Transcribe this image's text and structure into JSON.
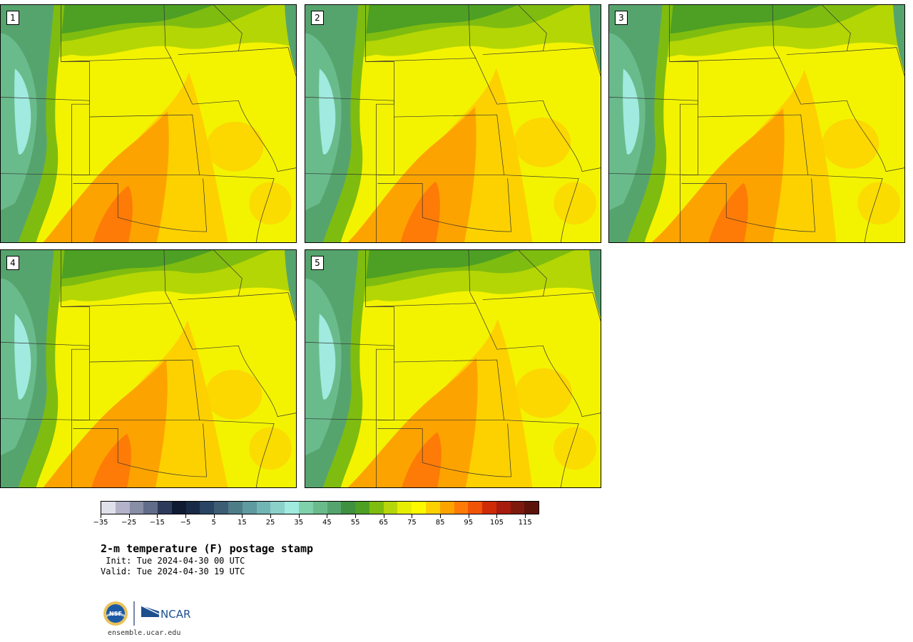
{
  "panels": [
    {
      "label": "1"
    },
    {
      "label": "2"
    },
    {
      "label": "3"
    },
    {
      "label": "4"
    },
    {
      "label": "5"
    }
  ],
  "colorbar": {
    "colors": [
      "#dfe0ea",
      "#b2b2c8",
      "#878ea6",
      "#616c88",
      "#2d3a5a",
      "#0f1a33",
      "#182a45",
      "#2a4563",
      "#3c5d74",
      "#4e7d88",
      "#5f9aa0",
      "#72b5b5",
      "#8bd0c9",
      "#a0eadf",
      "#7fd1ab",
      "#6abb8c",
      "#56a46d",
      "#3f9040",
      "#4da023",
      "#7fbc10",
      "#b5d60b",
      "#e6ef03",
      "#fdfa00",
      "#fdd100",
      "#fda300",
      "#fe7b07",
      "#ef5407",
      "#cf2b06",
      "#a61c0f",
      "#7e190d",
      "#5c130b"
    ],
    "ticks": [
      "−35",
      "−25",
      "−15",
      "−5",
      "5",
      "15",
      "25",
      "35",
      "45",
      "55",
      "65",
      "75",
      "85",
      "95",
      "105",
      "115"
    ]
  },
  "title": "2-m temperature (F) postage stamp",
  "init": " Init: Tue 2024-04-30 00 UTC",
  "valid": "Valid: Tue 2024-04-30 19 UTC",
  "logos": {
    "nsf": "NSF",
    "ncar": "NCAR"
  },
  "site": "ensemble.ucar.edu"
}
